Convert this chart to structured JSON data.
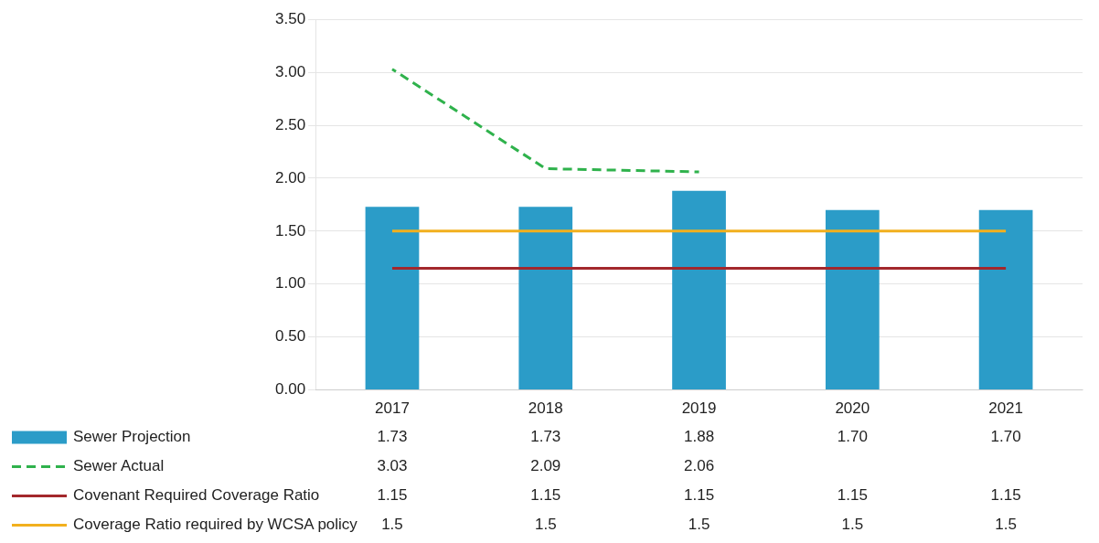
{
  "chart_data": {
    "type": "bar",
    "categories": [
      "2017",
      "2018",
      "2019",
      "2020",
      "2021"
    ],
    "series": [
      {
        "name": "Sewer Projection",
        "color": "#2b9cc8",
        "values": [
          1.73,
          1.73,
          1.88,
          1.7,
          1.7
        ],
        "value_labels": [
          "1.73",
          "1.73",
          "1.88",
          "1.70",
          "1.70"
        ]
      },
      {
        "name": "Sewer Actual",
        "type": "line",
        "line_style": "dashed",
        "color": "#2fb24c",
        "values": [
          3.03,
          2.09,
          2.06,
          null,
          null
        ],
        "value_labels": [
          "3.03",
          "2.09",
          "2.06",
          null,
          null
        ]
      },
      {
        "name": "Covenant Required Coverage Ratio",
        "type": "line",
        "line_style": "solid",
        "color": "#a3282c",
        "values": [
          1.15,
          1.15,
          1.15,
          1.15,
          1.15
        ],
        "value_labels": [
          "1.15",
          "1.15",
          "1.15",
          "1.15",
          "1.15"
        ]
      },
      {
        "name": "Coverage Ratio required by WCSA policy",
        "type": "line",
        "line_style": "solid",
        "color": "#f2b01e",
        "values": [
          1.5,
          1.5,
          1.5,
          1.5,
          1.5
        ],
        "value_labels": [
          "1.5",
          "1.5",
          "1.5",
          "1.5",
          "1.5"
        ]
      }
    ],
    "ylim": [
      0,
      3.5
    ],
    "yticks": [
      {
        "value": 0,
        "label": "0.00"
      },
      {
        "value": 0.5,
        "label": "0.50"
      },
      {
        "value": 1,
        "label": "1.00"
      },
      {
        "value": 1.5,
        "label": "1.50"
      },
      {
        "value": 2,
        "label": "2.00"
      },
      {
        "value": 2.5,
        "label": "2.50"
      },
      {
        "value": 3,
        "label": "3.00"
      },
      {
        "value": 3.5,
        "label": "3.50"
      }
    ],
    "grid": "y",
    "legend": "bottom",
    "marker": "none"
  }
}
